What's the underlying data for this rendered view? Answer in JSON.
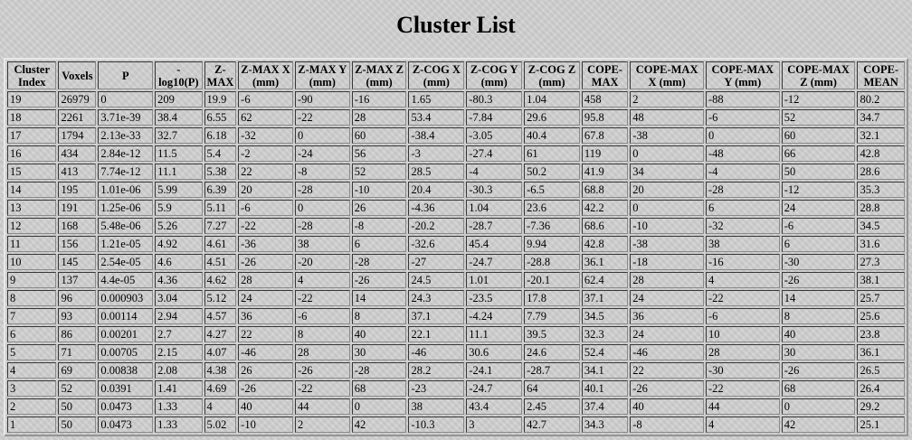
{
  "page": {
    "title": "Cluster List"
  },
  "table": {
    "headers": [
      "Cluster Index",
      "Voxels",
      "P",
      "-log10(P)",
      "Z-MAX",
      "Z-MAX X (mm)",
      "Z-MAX Y (mm)",
      "Z-MAX Z (mm)",
      "Z-COG X (mm)",
      "Z-COG Y (mm)",
      "Z-COG Z (mm)",
      "COPE-MAX",
      "COPE-MAX X (mm)",
      "COPE-MAX Y (mm)",
      "COPE-MAX Z (mm)",
      "COPE-MEAN"
    ],
    "rows": [
      [
        "19",
        "26979",
        "0",
        "209",
        "19.9",
        "-6",
        "-90",
        "-16",
        "1.65",
        "-80.3",
        "1.04",
        "458",
        "2",
        "-88",
        "-12",
        "80.2"
      ],
      [
        "18",
        "2261",
        "3.71e-39",
        "38.4",
        "6.55",
        "62",
        "-22",
        "28",
        "53.4",
        "-7.84",
        "29.6",
        "95.8",
        "48",
        "-6",
        "52",
        "34.7"
      ],
      [
        "17",
        "1794",
        "2.13e-33",
        "32.7",
        "6.18",
        "-32",
        "0",
        "60",
        "-38.4",
        "-3.05",
        "40.4",
        "67.8",
        "-38",
        "0",
        "60",
        "32.1"
      ],
      [
        "16",
        "434",
        "2.84e-12",
        "11.5",
        "5.4",
        "-2",
        "-24",
        "56",
        "-3",
        "-27.4",
        "61",
        "119",
        "0",
        "-48",
        "66",
        "42.8"
      ],
      [
        "15",
        "413",
        "7.74e-12",
        "11.1",
        "5.38",
        "22",
        "-8",
        "52",
        "28.5",
        "-4",
        "50.2",
        "41.9",
        "34",
        "-4",
        "50",
        "28.6"
      ],
      [
        "14",
        "195",
        "1.01e-06",
        "5.99",
        "6.39",
        "20",
        "-28",
        "-10",
        "20.4",
        "-30.3",
        "-6.5",
        "68.8",
        "20",
        "-28",
        "-12",
        "35.3"
      ],
      [
        "13",
        "191",
        "1.25e-06",
        "5.9",
        "5.11",
        "-6",
        "0",
        "26",
        "-4.36",
        "1.04",
        "23.6",
        "42.2",
        "0",
        "6",
        "24",
        "28.8"
      ],
      [
        "12",
        "168",
        "5.48e-06",
        "5.26",
        "7.27",
        "-22",
        "-28",
        "-8",
        "-20.2",
        "-28.7",
        "-7.36",
        "68.6",
        "-10",
        "-32",
        "-6",
        "34.5"
      ],
      [
        "11",
        "156",
        "1.21e-05",
        "4.92",
        "4.61",
        "-36",
        "38",
        "6",
        "-32.6",
        "45.4",
        "9.94",
        "42.8",
        "-38",
        "38",
        "6",
        "31.6"
      ],
      [
        "10",
        "145",
        "2.54e-05",
        "4.6",
        "4.51",
        "-26",
        "-20",
        "-28",
        "-27",
        "-24.7",
        "-28.8",
        "36.1",
        "-18",
        "-16",
        "-30",
        "27.3"
      ],
      [
        "9",
        "137",
        "4.4e-05",
        "4.36",
        "4.62",
        "28",
        "4",
        "-26",
        "24.5",
        "1.01",
        "-20.1",
        "62.4",
        "28",
        "4",
        "-26",
        "38.1"
      ],
      [
        "8",
        "96",
        "0.000903",
        "3.04",
        "5.12",
        "24",
        "-22",
        "14",
        "24.3",
        "-23.5",
        "17.8",
        "37.1",
        "24",
        "-22",
        "14",
        "25.7"
      ],
      [
        "7",
        "93",
        "0.00114",
        "2.94",
        "4.57",
        "36",
        "-6",
        "8",
        "37.1",
        "-4.24",
        "7.79",
        "34.5",
        "36",
        "-6",
        "8",
        "25.6"
      ],
      [
        "6",
        "86",
        "0.00201",
        "2.7",
        "4.27",
        "22",
        "8",
        "40",
        "22.1",
        "11.1",
        "39.5",
        "32.3",
        "24",
        "10",
        "40",
        "23.8"
      ],
      [
        "5",
        "71",
        "0.00705",
        "2.15",
        "4.07",
        "-46",
        "28",
        "30",
        "-46",
        "30.6",
        "24.6",
        "52.4",
        "-46",
        "28",
        "30",
        "36.1"
      ],
      [
        "4",
        "69",
        "0.00838",
        "2.08",
        "4.38",
        "26",
        "-26",
        "-28",
        "28.2",
        "-24.1",
        "-28.7",
        "34.1",
        "22",
        "-30",
        "-26",
        "26.5"
      ],
      [
        "3",
        "52",
        "0.0391",
        "1.41",
        "4.69",
        "-26",
        "-22",
        "68",
        "-23",
        "-24.7",
        "64",
        "40.1",
        "-26",
        "-22",
        "68",
        "26.4"
      ],
      [
        "2",
        "50",
        "0.0473",
        "1.33",
        "4",
        "40",
        "44",
        "0",
        "38",
        "43.4",
        "2.45",
        "37.4",
        "40",
        "44",
        "0",
        "29.2"
      ],
      [
        "1",
        "50",
        "0.0473",
        "1.33",
        "5.02",
        "-10",
        "2",
        "42",
        "-10.3",
        "3",
        "42.7",
        "34.3",
        "-8",
        "4",
        "42",
        "25.1"
      ]
    ]
  }
}
